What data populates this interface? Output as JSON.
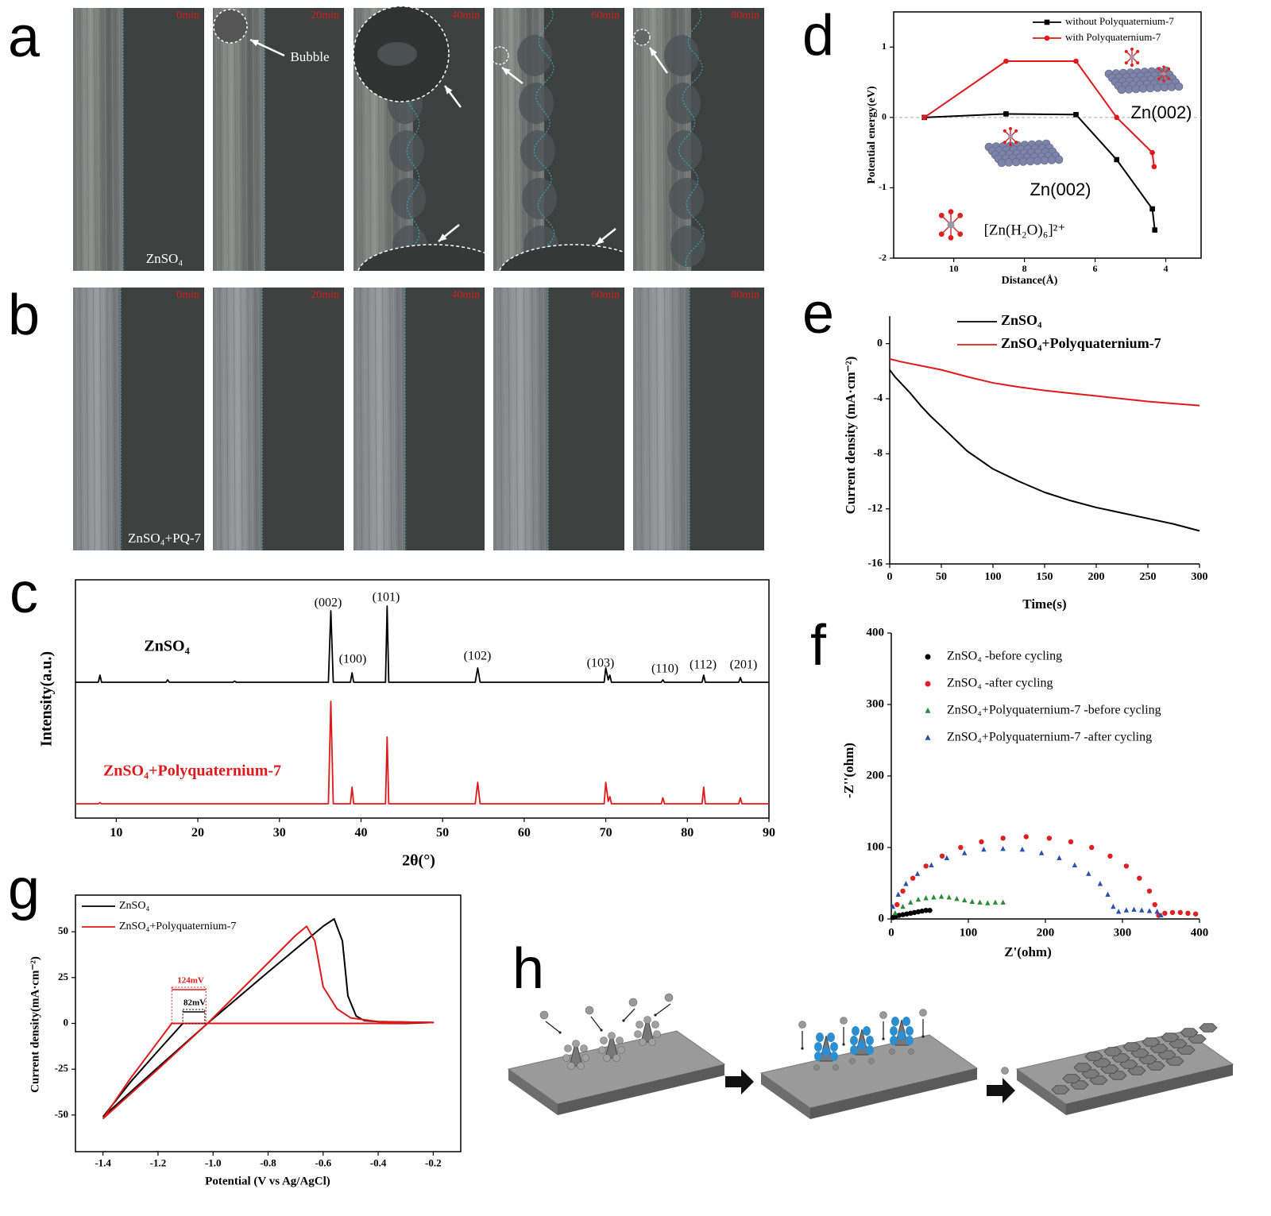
{
  "panel_labels": [
    "a",
    "b",
    "c",
    "d",
    "e",
    "f",
    "g",
    "h"
  ],
  "micrographs": [
    {
      "times": [
        "0min",
        "20min",
        "40min",
        "60min",
        "80min"
      ],
      "caption": "ZnSO₄",
      "annotation": "Bubble"
    },
    {
      "times": [
        "0min",
        "20min",
        "40min",
        "60min",
        "80min"
      ],
      "caption": "ZnSO₄+PQ-7"
    }
  ],
  "chart_data": [
    {
      "type": "line",
      "xlabel": "2θ(°)",
      "ylabel": "Intensity(a.u.)",
      "xlim": [
        5,
        90
      ],
      "xticks": [
        10,
        20,
        30,
        40,
        50,
        60,
        70,
        80,
        90
      ],
      "ylim": [
        0,
        100
      ],
      "x": [
        5,
        7.8,
        8,
        8.2,
        16.1,
        16.3,
        16.5,
        24.3,
        24.5,
        24.7,
        36,
        36.3,
        36.6,
        38.7,
        38.9,
        39.1,
        43,
        43.2,
        43.4,
        54,
        54.3,
        54.6,
        69.8,
        70,
        70.3,
        70.5,
        70.7,
        76.8,
        77,
        77.2,
        81.8,
        82,
        82.2,
        86.3,
        86.5,
        86.7,
        90
      ],
      "series": [
        {
          "name": "ZnSO₄",
          "color": "#000000",
          "values": [
            57,
            57,
            60,
            57,
            57,
            58,
            57,
            57,
            57.5,
            57,
            57,
            87,
            57,
            57,
            61,
            57,
            57,
            89,
            57,
            57,
            63,
            57,
            57,
            63,
            58,
            60,
            57,
            57,
            58,
            57,
            57,
            60,
            57,
            57,
            59,
            57,
            57
          ]
        },
        {
          "name": "ZnSO₄+Polyquaternium-7",
          "color": "#e0191b",
          "values": [
            6,
            6,
            6.5,
            6,
            6,
            6,
            6,
            6,
            6,
            6,
            6,
            49,
            6,
            6,
            13,
            6,
            6,
            34,
            6,
            6,
            15,
            6,
            6,
            15,
            7,
            9,
            6,
            6,
            8.5,
            6,
            6,
            13,
            6,
            6,
            8.5,
            6,
            6
          ]
        }
      ],
      "annotations": [
        "(002)",
        "(100)",
        "(101)",
        "(102)",
        "(103)",
        "(110)",
        "(112)",
        "(201)"
      ]
    },
    {
      "type": "line",
      "xlabel": "Distance(Å)",
      "ylabel": "Potential energy(eV)",
      "xlim": [
        11.7,
        3
      ],
      "xticks": [
        10,
        8,
        6,
        4
      ],
      "ylim": [
        -2,
        1.5
      ],
      "yticks": [
        1,
        0,
        -1,
        -2
      ],
      "ref_line": 0,
      "series": [
        {
          "name": "without Polyquaternium-7",
          "color": "#000000",
          "marker": "square",
          "x": [
            10.83,
            8.52,
            6.54,
            5.39,
            4.38,
            4.31
          ],
          "values": [
            0,
            0.05,
            0.04,
            -0.6,
            -1.3,
            -1.6
          ]
        },
        {
          "name": "with Polyquaternium-7",
          "color": "#e0191b",
          "marker": "circle",
          "x": [
            10.83,
            8.52,
            6.54,
            5.39,
            4.38,
            4.33
          ],
          "values": [
            0,
            0.8,
            0.8,
            0,
            -0.5,
            -0.7
          ]
        }
      ],
      "annotations": [
        "Zn(002)",
        "Zn(002)",
        "[Zn(H₂O)₆]²⁺"
      ]
    },
    {
      "type": "line",
      "xlabel": "Time(s)",
      "ylabel": "Current density (mA·cm⁻²)",
      "xlim": [
        0,
        300
      ],
      "xticks": [
        0,
        50,
        100,
        150,
        200,
        250,
        300
      ],
      "ylim": [
        -16,
        2
      ],
      "yticks": [
        0,
        -4,
        -8,
        -12,
        -16
      ],
      "x": [
        0,
        2,
        5,
        10,
        20,
        30,
        40,
        50,
        75,
        100,
        125,
        150,
        175,
        200,
        225,
        250,
        275,
        300
      ],
      "series": [
        {
          "name": "ZnSO₄",
          "color": "#000000",
          "values": [
            -1.9,
            -2.1,
            -2.4,
            -2.8,
            -3.6,
            -4.5,
            -5.3,
            -6.0,
            -7.8,
            -9.1,
            -10.0,
            -10.8,
            -11.4,
            -11.9,
            -12.3,
            -12.7,
            -13.1,
            -13.6
          ]
        },
        {
          "name": "ZnSO₄+Polyquaternium-7",
          "color": "#e0191b",
          "values": [
            -1.1,
            -1.15,
            -1.2,
            -1.3,
            -1.45,
            -1.6,
            -1.75,
            -1.9,
            -2.4,
            -2.85,
            -3.15,
            -3.4,
            -3.6,
            -3.8,
            -4.0,
            -4.2,
            -4.35,
            -4.5
          ]
        }
      ]
    },
    {
      "type": "scatter",
      "xlabel": "Z'(ohm)",
      "ylabel": "-Z''(ohm)",
      "xlim": [
        0,
        400
      ],
      "xticks": [
        0,
        100,
        200,
        300,
        400
      ],
      "ylim": [
        0,
        400
      ],
      "yticks": [
        0,
        100,
        200,
        300,
        400
      ],
      "series": [
        {
          "name": "ZnSO₄ -before cycling",
          "color": "#000000",
          "marker": "circle",
          "x": [
            2,
            6,
            10,
            15,
            20,
            25,
            30,
            35,
            40,
            45,
            50
          ],
          "values": [
            2,
            4,
            5,
            6,
            7,
            8,
            9,
            10,
            11,
            12,
            12
          ]
        },
        {
          "name": "ZnSO₄ -after cycling",
          "color": "#e02020",
          "marker": "circle",
          "x": [
            7.5,
            15,
            28,
            45,
            66,
            90,
            117,
            145,
            175,
            205,
            233,
            260,
            284,
            305,
            322,
            335,
            342,
            347,
            355,
            365,
            375,
            385,
            395
          ],
          "values": [
            20,
            39,
            57,
            74,
            88,
            100,
            108,
            113,
            115,
            113,
            108,
            100,
            88,
            74,
            57,
            39,
            20,
            5,
            8,
            9,
            9,
            8,
            7
          ]
        },
        {
          "name": "ZnSO₄+Polyquaternium-7 -before cycling",
          "color": "#2e8b3a",
          "marker": "triangle",
          "x": [
            5,
            15,
            25,
            35,
            45,
            55,
            65,
            75,
            85,
            95,
            105,
            115,
            125,
            135,
            145
          ],
          "values": [
            8,
            17,
            23,
            27,
            29,
            30,
            31,
            30,
            28,
            26,
            24,
            23,
            22,
            23,
            23
          ]
        },
        {
          "name": "ZnSO₄+Polyquaternium-7 -after cycling",
          "color": "#2a50b0",
          "marker": "triangle",
          "x": [
            2,
            9,
            19,
            34,
            52,
            72,
            95,
            120,
            145,
            170,
            195,
            218,
            238,
            256,
            271,
            281,
            288,
            295,
            305,
            315,
            325,
            335,
            345,
            350
          ],
          "values": [
            17,
            34,
            49,
            63,
            75,
            85,
            92,
            97,
            98,
            97,
            92,
            85,
            75,
            63,
            49,
            34,
            17,
            10,
            12,
            13,
            12,
            11,
            10,
            5
          ]
        }
      ]
    },
    {
      "type": "line",
      "xlabel": "Potential (V vs Ag/AgCl)",
      "ylabel": "Current density(mA·cm⁻²)",
      "xlim": [
        -1.5,
        -0.1
      ],
      "xticks": [
        -1.4,
        -1.2,
        {
          "value": -1,
          "label": "-1.0"
        },
        -0.8,
        -0.6,
        -0.4,
        -0.2
      ],
      "ylim": [
        -70,
        70
      ],
      "yticks": [
        -50,
        -25,
        0,
        25,
        50
      ],
      "series": [
        {
          "name": "ZnSO₄",
          "color": "#000000",
          "x": [
            -1.4,
            -1.2,
            -1.02,
            -0.8,
            -0.6,
            -0.56,
            -0.53,
            -0.51,
            -0.48,
            -0.45,
            -0.4,
            -0.3,
            -0.2,
            -0.3,
            -0.5,
            -0.7,
            -0.9,
            -1.0,
            -1.11,
            -1.2,
            -1.3,
            -1.4
          ],
          "values": [
            -51,
            -24,
            0,
            28,
            53,
            57,
            45,
            15,
            4,
            1.5,
            1,
            0.7,
            0.5,
            0,
            0,
            0,
            0,
            0,
            0,
            -15,
            -32,
            -51
          ]
        },
        {
          "name": "ZnSO₄+Polyquaternium-7",
          "color": "#e0191b",
          "x": [
            -1.4,
            -1.2,
            -1.02,
            -0.8,
            -0.7,
            -0.66,
            -0.63,
            -0.6,
            -0.55,
            -0.5,
            -0.4,
            -0.2,
            -0.4,
            -0.6,
            -0.8,
            -1.0,
            -1.15,
            -1.2,
            -1.3,
            -1.4
          ],
          "values": [
            -52,
            -25,
            0,
            33,
            48,
            53,
            45,
            20,
            8,
            3,
            1,
            0.5,
            0,
            0,
            0,
            0,
            0,
            -10,
            -30,
            -52
          ]
        }
      ],
      "annotations": [
        "124mV",
        "82mV"
      ]
    }
  ]
}
